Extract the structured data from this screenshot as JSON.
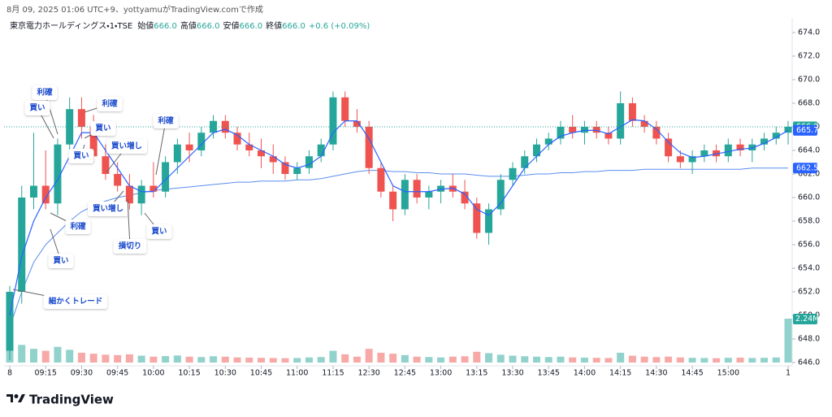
{
  "header": {
    "caption": "8月 09, 2025 01:06 UTC+9、yottyamuがTradingView.comで作成"
  },
  "footer": {
    "brand": "TradingView"
  },
  "chart_data": {
    "type": "candlestick",
    "symbol": "東京電力ホールディングス・1・TSE",
    "legend": [
      {
        "label": "始値",
        "value": "666.0"
      },
      {
        "label": "高値",
        "value": "666.0"
      },
      {
        "label": "安値",
        "value": "666.0"
      },
      {
        "label": "終値",
        "value": "666.0"
      }
    ],
    "change": "+0.6 (+0.09%)",
    "up_color": "#26a69a",
    "down_color": "#ef5350",
    "ma_color": "#2962ff",
    "vwap_color": "#5b8def",
    "categories": [
      "8",
      null,
      null,
      "09:15",
      null,
      null,
      "09:30",
      null,
      null,
      "09:45",
      null,
      null,
      "10:00",
      null,
      null,
      "10:15",
      null,
      null,
      "10:30",
      null,
      null,
      "10:45",
      null,
      null,
      "11:00",
      null,
      null,
      "11:15",
      null,
      null,
      "12:30",
      null,
      null,
      "12:45",
      null,
      null,
      "13:00",
      null,
      null,
      "13:15",
      null,
      null,
      "13:30",
      null,
      null,
      "13:45",
      null,
      null,
      "14:00",
      null,
      null,
      "14:15",
      null,
      null,
      "14:30",
      null,
      null,
      "14:45",
      null,
      null,
      "15:00",
      null,
      null,
      null,
      null,
      "1"
    ],
    "open": [
      647,
      652,
      660,
      661,
      659.5,
      664.5,
      667.5,
      666,
      663.5,
      662,
      661,
      659.5,
      661,
      660.5,
      663,
      664.5,
      664,
      665.5,
      666.5,
      665.5,
      664.5,
      664,
      663.5,
      663,
      662,
      662.5,
      663.5,
      664.5,
      668.5,
      666.5,
      666,
      662.5,
      660.5,
      659,
      661.5,
      660,
      660.5,
      661,
      660.5,
      659.5,
      657,
      659,
      661.5,
      662.5,
      663.5,
      664.5,
      665,
      666,
      665.5,
      666,
      665.5,
      665,
      668,
      666.5,
      666,
      665,
      663.5,
      663,
      663.5,
      664,
      663.5,
      664.5,
      664,
      664.5,
      665,
      665.5
    ],
    "high": [
      652.5,
      661,
      665.5,
      664,
      665,
      668.5,
      668.5,
      667,
      664.5,
      663,
      662,
      661.5,
      663,
      663.5,
      665,
      665.5,
      666,
      667,
      667,
      666,
      665.5,
      665,
      664.5,
      663.5,
      663,
      664,
      665,
      669,
      669,
      667.5,
      666.5,
      663,
      661,
      662,
      662,
      661,
      661.5,
      662,
      661.5,
      660,
      659.5,
      662,
      663,
      664,
      665,
      665.5,
      666.5,
      667,
      666.5,
      666.5,
      666,
      669,
      668.5,
      667,
      666.5,
      665.5,
      664,
      664,
      664.5,
      664.5,
      665,
      665,
      665,
      665.5,
      666,
      666.5
    ],
    "low": [
      646.2,
      651,
      659,
      659,
      658.5,
      664,
      665,
      663,
      661.5,
      660.5,
      659,
      658.5,
      660,
      660,
      662,
      663,
      663.5,
      665,
      665,
      664,
      663.5,
      662.5,
      662,
      661.5,
      661.5,
      662,
      663,
      664,
      666,
      665.5,
      662,
      660,
      658,
      658.5,
      659.5,
      659,
      659.5,
      660,
      659,
      656.5,
      656,
      658.5,
      661,
      662,
      663,
      664,
      664.5,
      665,
      664.5,
      665,
      664.5,
      664.5,
      666,
      665.5,
      664.5,
      663,
      662.5,
      662,
      663,
      663,
      663,
      663.5,
      663,
      664,
      664.5,
      664.5
    ],
    "close": [
      652,
      660,
      661,
      659.5,
      664.5,
      667.5,
      666,
      663.5,
      662,
      661,
      659.5,
      661,
      660.5,
      663,
      664.5,
      664,
      665.5,
      666.5,
      665.5,
      664.5,
      664,
      663.5,
      663,
      662,
      662.5,
      663.5,
      664.5,
      668.5,
      666.5,
      666,
      662.5,
      660.5,
      659,
      661.5,
      660,
      660.5,
      661,
      660.5,
      659.5,
      657,
      659,
      661.5,
      662.5,
      663.5,
      664.5,
      665,
      666,
      665.5,
      666,
      665.5,
      665,
      668,
      666.5,
      666,
      665,
      663.5,
      663,
      663.5,
      664,
      663.5,
      664.5,
      664,
      664.5,
      665,
      665.5,
      666
    ],
    "ma_values": [
      650,
      655,
      658,
      660,
      661.5,
      663.5,
      665.5,
      665.5,
      664,
      662.5,
      661,
      660.5,
      660.5,
      661.5,
      662.5,
      663.5,
      664.5,
      665.5,
      665.8,
      665.3,
      664.5,
      664,
      663.5,
      662.8,
      662.5,
      662.8,
      663.5,
      665.5,
      666.5,
      666.5,
      665,
      663,
      661,
      660.5,
      660.5,
      660.5,
      660.7,
      660.8,
      660.3,
      659,
      658.5,
      659.5,
      661,
      662.5,
      663.5,
      664.5,
      665.2,
      665.5,
      665.7,
      665.7,
      665.4,
      666,
      666.6,
      666.5,
      665.8,
      664.7,
      663.8,
      663.4,
      663.5,
      663.7,
      663.9,
      664.1,
      664.2,
      664.6,
      665.1,
      665.7
    ],
    "vwap_values": [
      649,
      652,
      654.5,
      656,
      657,
      658,
      658.8,
      659.3,
      659.7,
      660,
      660.2,
      660.4,
      660.6,
      660.7,
      660.8,
      660.9,
      661,
      661.1,
      661.2,
      661.3,
      661.3,
      661.4,
      661.4,
      661.4,
      661.5,
      661.5,
      661.6,
      661.8,
      662,
      662.2,
      662.3,
      662.3,
      662.2,
      662.2,
      662.1,
      662.1,
      662,
      662,
      662,
      661.9,
      661.8,
      661.8,
      661.8,
      661.9,
      662,
      662,
      662.1,
      662.1,
      662.2,
      662.2,
      662.3,
      662.3,
      662.3,
      662.4,
      662.4,
      662.4,
      662.4,
      662.4,
      662.4,
      662.4,
      662.4,
      662.4,
      662.5,
      662.5,
      662.5,
      662.5
    ],
    "volume": [
      1200000,
      900000,
      700000,
      600000,
      800000,
      650000,
      500000,
      450000,
      400000,
      380000,
      420000,
      350000,
      300000,
      330000,
      360000,
      300000,
      280000,
      320000,
      300000,
      260000,
      250000,
      240000,
      230000,
      220000,
      230000,
      260000,
      280000,
      600000,
      420000,
      300000,
      700000,
      500000,
      450000,
      380000,
      300000,
      280000,
      260000,
      300000,
      320000,
      550000,
      480000,
      400000,
      350000,
      320000,
      300000,
      280000,
      300000,
      260000,
      250000,
      240000,
      230000,
      500000,
      350000,
      300000,
      280000,
      300000,
      260000,
      240000,
      230000,
      220000,
      240000,
      250000,
      230000,
      240000,
      260000,
      2240000
    ],
    "volume_label": "2.24M",
    "ylim": [
      646,
      674
    ],
    "yticks": [
      {
        "value": 646,
        "label": "646.0"
      },
      {
        "value": 648,
        "label": "648.0"
      },
      {
        "value": 650,
        "label": "650.0"
      },
      {
        "value": 652,
        "label": "652.0"
      },
      {
        "value": 654,
        "label": "654.0"
      },
      {
        "value": 656,
        "label": "656.0"
      },
      {
        "value": 658,
        "label": "658.0"
      },
      {
        "value": 660,
        "label": "660.0"
      },
      {
        "value": 662,
        "label": "662.0"
      },
      {
        "value": 664,
        "label": "664.0"
      },
      {
        "value": 666,
        "label": "666.0"
      },
      {
        "value": 668,
        "label": "668.0"
      },
      {
        "value": 670,
        "label": "670.0"
      },
      {
        "value": 672,
        "label": "672.0"
      },
      {
        "value": 674,
        "label": "674.0"
      }
    ],
    "price_labels": [
      {
        "value": 666,
        "label": "666.0",
        "color": "#26a69a"
      },
      {
        "value": 665.7,
        "label": "665.7",
        "color": "#2962ff"
      },
      {
        "value": 662.5,
        "label": "662.5",
        "color": "#2962ff"
      }
    ],
    "annotations": [
      "利確",
      "買い",
      "利確",
      "買い",
      "買い",
      "買い増し",
      "利確",
      "買い増し",
      "利確",
      "買い",
      "損切り",
      "買い",
      "細かくトレード"
    ]
  }
}
